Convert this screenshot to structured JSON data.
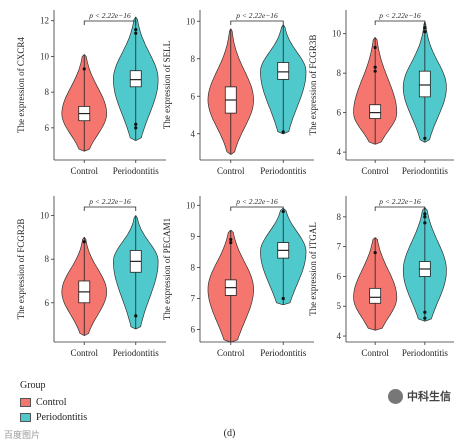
{
  "colors": {
    "Control": "#f4766e",
    "Periodontitis": "#4fc9cc"
  },
  "groups": [
    "Control",
    "Periodontitis"
  ],
  "legend": {
    "title": "Group",
    "items": [
      "Control",
      "Periodontitis"
    ]
  },
  "caption": "(d)",
  "watermark": "中科生信",
  "watermark2": "百度图片",
  "chart_data": [
    {
      "type": "violin",
      "ylabel": "The expression of CXCR4",
      "pvalue": "p < 2.22e−16",
      "categories": [
        "Control",
        "Periodontitis"
      ],
      "ylim": [
        4.2,
        12.6
      ],
      "yticks": [
        6,
        8,
        10,
        12
      ],
      "series": [
        {
          "name": "Control",
          "min": 4.7,
          "q1": 6.4,
          "median": 6.8,
          "q3": 7.2,
          "max": 10.1,
          "mode": 6.8,
          "outliers": [
            9.3
          ]
        },
        {
          "name": "Periodontitis",
          "min": 5.3,
          "q1": 8.3,
          "median": 8.7,
          "q3": 9.2,
          "max": 12.2,
          "mode": 8.7,
          "outliers": [
            6.0,
            6.2,
            11.3,
            11.5
          ]
        }
      ]
    },
    {
      "type": "violin",
      "ylabel": "The expression of SELL",
      "pvalue": "p < 2.22e−16",
      "categories": [
        "Control",
        "Periodontitis"
      ],
      "ylim": [
        2.6,
        10.6
      ],
      "yticks": [
        4,
        6,
        8,
        10
      ],
      "series": [
        {
          "name": "Control",
          "min": 2.9,
          "q1": 5.1,
          "median": 5.8,
          "q3": 6.5,
          "max": 9.6,
          "mode": 5.8,
          "outliers": []
        },
        {
          "name": "Periodontitis",
          "min": 4.0,
          "q1": 6.9,
          "median": 7.3,
          "q3": 7.8,
          "max": 9.8,
          "mode": 7.3,
          "outliers": [
            4.1
          ]
        }
      ]
    },
    {
      "type": "violin",
      "ylabel": "The expression of FCGR3B",
      "pvalue": "p < 2.22e−16",
      "categories": [
        "Control",
        "Periodontitis"
      ],
      "ylim": [
        3.6,
        11.2
      ],
      "yticks": [
        4,
        6,
        8,
        10
      ],
      "series": [
        {
          "name": "Control",
          "min": 4.4,
          "q1": 5.7,
          "median": 6.0,
          "q3": 6.4,
          "max": 9.8,
          "mode": 6.0,
          "outliers": [
            8.1,
            8.3,
            9.3
          ]
        },
        {
          "name": "Periodontitis",
          "min": 4.5,
          "q1": 6.8,
          "median": 7.4,
          "q3": 8.1,
          "max": 10.6,
          "mode": 7.3,
          "outliers": [
            4.7,
            10.1,
            10.3
          ]
        }
      ]
    },
    {
      "type": "violin",
      "ylabel": "The expression of FCGR2B",
      "pvalue": "p < 2.22e−16",
      "categories": [
        "Control",
        "Periodontitis"
      ],
      "ylim": [
        4.2,
        10.9
      ],
      "yticks": [
        6,
        8,
        10
      ],
      "series": [
        {
          "name": "Control",
          "min": 4.5,
          "q1": 6.0,
          "median": 6.5,
          "q3": 7.0,
          "max": 9.0,
          "mode": 6.5,
          "outliers": [
            8.8
          ]
        },
        {
          "name": "Periodontitis",
          "min": 4.8,
          "q1": 7.4,
          "median": 7.9,
          "q3": 8.4,
          "max": 10.0,
          "mode": 7.9,
          "outliers": [
            5.4
          ]
        }
      ]
    },
    {
      "type": "violin",
      "ylabel": "The expression of PECAM1",
      "pvalue": "p < 2.22e−16",
      "categories": [
        "Control",
        "Periodontitis"
      ],
      "ylim": [
        5.6,
        10.3
      ],
      "yticks": [
        6,
        7,
        8,
        9,
        10
      ],
      "series": [
        {
          "name": "Control",
          "min": 5.6,
          "q1": 7.1,
          "median": 7.35,
          "q3": 7.6,
          "max": 9.2,
          "mode": 7.3,
          "outliers": [
            8.8,
            8.9
          ]
        },
        {
          "name": "Periodontitis",
          "min": 6.8,
          "q1": 8.3,
          "median": 8.55,
          "q3": 8.8,
          "max": 9.9,
          "mode": 8.5,
          "outliers": [
            7.0,
            9.8
          ]
        }
      ]
    },
    {
      "type": "violin",
      "ylabel": "The expression of ITGAL",
      "pvalue": "p < 2.22e−16",
      "categories": [
        "Control",
        "Periodontitis"
      ],
      "ylim": [
        3.8,
        8.7
      ],
      "yticks": [
        4,
        5,
        6,
        7,
        8
      ],
      "series": [
        {
          "name": "Control",
          "min": 4.2,
          "q1": 5.1,
          "median": 5.3,
          "q3": 5.6,
          "max": 7.3,
          "mode": 5.3,
          "outliers": [
            6.8
          ]
        },
        {
          "name": "Periodontitis",
          "min": 4.5,
          "q1": 6.0,
          "median": 6.25,
          "q3": 6.5,
          "max": 8.3,
          "mode": 6.2,
          "outliers": [
            4.6,
            4.8,
            7.8,
            8.0,
            8.1
          ]
        }
      ]
    }
  ]
}
